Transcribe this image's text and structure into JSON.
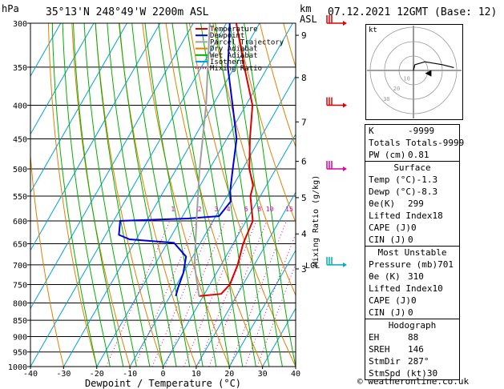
{
  "header": {
    "hpa_label": "hPa",
    "location": "35°13'N  248°49'W  2200m  ASL",
    "km_label": "km",
    "asl_label": "ASL",
    "datetime": "07.12.2021  12GMT  (Base: 12)"
  },
  "legend": [
    {
      "label": "Temperature",
      "color": "#e00000",
      "style": "solid"
    },
    {
      "label": "Dewpoint",
      "color": "#0000e0",
      "style": "solid"
    },
    {
      "label": "Parcel Trajectory",
      "color": "#a0a0a0",
      "style": "solid"
    },
    {
      "label": "Dry Adiabat",
      "color": "#e08000",
      "style": "solid"
    },
    {
      "label": "Wet Adiabat",
      "color": "#00b000",
      "style": "solid"
    },
    {
      "label": "Isotherm",
      "color": "#00a0e0",
      "style": "solid"
    },
    {
      "label": "Mixing Ratio",
      "color": "#e000a0",
      "style": "dotted"
    }
  ],
  "chart_data": {
    "type": "line",
    "title": "",
    "xlabel": "Dewpoint / Temperature (°C)",
    "ylabel": "hPa",
    "xlim": [
      -40,
      40
    ],
    "ylim": [
      1000,
      300
    ],
    "y_scale": "log",
    "x_ticks": [
      "-40",
      "-30",
      "-20",
      "-10",
      "0",
      "10",
      "20",
      "30",
      "40"
    ],
    "pressure_levels": [
      300,
      350,
      400,
      450,
      500,
      550,
      600,
      650,
      700,
      750,
      800,
      850,
      900,
      950,
      1000
    ],
    "km_ticks": [
      {
        "label": "9",
        "p": 313
      },
      {
        "label": "8",
        "p": 363
      },
      {
        "label": "7",
        "p": 424
      },
      {
        "label": "6",
        "p": 487
      },
      {
        "label": "5",
        "p": 553
      },
      {
        "label": "4",
        "p": 628
      },
      {
        "label": "3",
        "p": 710
      }
    ],
    "lcl": {
      "label": "LCL",
      "p": 700
    },
    "mixing_ratio_labels": [
      "1",
      "2",
      "3",
      "4",
      "6",
      "8",
      "10",
      "15",
      "20",
      "25"
    ],
    "mixing_ratio_values": [
      1,
      2,
      3,
      4,
      6,
      8,
      10,
      15,
      20,
      25
    ],
    "mixing_ratio_label_p": 585,
    "mixing_ratio_axis_label": "Mixing Ratio (g/kg)",
    "series": [
      {
        "name": "Temperature",
        "color": "#e00000",
        "points": [
          [
            781,
            -1.3
          ],
          [
            775,
            5
          ],
          [
            750,
            6
          ],
          [
            700,
            5
          ],
          [
            650,
            3
          ],
          [
            600,
            2
          ],
          [
            550,
            -3
          ],
          [
            530,
            -4
          ],
          [
            500,
            -8
          ],
          [
            450,
            -13
          ],
          [
            400,
            -18
          ],
          [
            350,
            -27
          ],
          [
            300,
            -37
          ]
        ]
      },
      {
        "name": "Dewpoint",
        "color": "#0000e0",
        "points": [
          [
            781,
            -8.3
          ],
          [
            760,
            -9
          ],
          [
            720,
            -10
          ],
          [
            680,
            -12
          ],
          [
            648,
            -18
          ],
          [
            640,
            -32
          ],
          [
            630,
            -36
          ],
          [
            600,
            -38
          ],
          [
            595,
            -18
          ],
          [
            590,
            -9
          ],
          [
            560,
            -8
          ],
          [
            540,
            -10
          ],
          [
            500,
            -13
          ],
          [
            450,
            -17
          ],
          [
            400,
            -24
          ],
          [
            350,
            -32
          ],
          [
            320,
            -36
          ],
          [
            300,
            -39
          ]
        ]
      },
      {
        "name": "Parcel Trajectory",
        "color": "#a0a0a0",
        "points": [
          [
            781,
            -1.3
          ],
          [
            700,
            -8
          ],
          [
            600,
            -15
          ],
          [
            500,
            -23
          ],
          [
            400,
            -32
          ],
          [
            300,
            -45
          ]
        ]
      }
    ],
    "wind_barbs": [
      {
        "p": 300,
        "color": "#e00000"
      },
      {
        "p": 400,
        "color": "#e00000"
      },
      {
        "p": 500,
        "color": "#e000a0"
      },
      {
        "p": 700,
        "color": "#00b0b0"
      }
    ]
  },
  "hodograph": {
    "unit_label": "kt",
    "ring_labels": [
      "10",
      "20",
      "30"
    ],
    "trace": [
      [
        0,
        0
      ],
      [
        1,
        4
      ],
      [
        8,
        6
      ],
      [
        20,
        4
      ],
      [
        28,
        2
      ]
    ],
    "storm_motion": {
      "u": 2,
      "v": 1
    }
  },
  "indices": {
    "top": [
      {
        "label": "K",
        "value": "-9999"
      },
      {
        "label": "Totals Totals",
        "value": "-9999"
      },
      {
        "label": "PW (cm)",
        "value": "0.81"
      }
    ],
    "surface_title": "Surface",
    "surface": [
      {
        "label": "Temp (°C)",
        "value": "-1.3"
      },
      {
        "label": "Dewp (°C)",
        "value": "-8.3"
      },
      {
        "label": "θe(K)",
        "value": "299"
      },
      {
        "label": "Lifted Index",
        "value": "18"
      },
      {
        "label": "CAPE (J)",
        "value": "0"
      },
      {
        "label": "CIN (J)",
        "value": "0"
      }
    ],
    "unstable_title": "Most Unstable",
    "unstable": [
      {
        "label": "Pressure (mb)",
        "value": "701"
      },
      {
        "label": "θe (K)",
        "value": "310"
      },
      {
        "label": "Lifted Index",
        "value": "10"
      },
      {
        "label": "CAPE (J)",
        "value": "0"
      },
      {
        "label": "CIN (J)",
        "value": "0"
      }
    ],
    "hodo_title": "Hodograph",
    "hodo": [
      {
        "label": "EH",
        "value": "88"
      },
      {
        "label": "SREH",
        "value": "146"
      },
      {
        "label": "StmDir",
        "value": "287°"
      },
      {
        "label": "StmSpd (kt)",
        "value": "30"
      }
    ]
  },
  "footer": "© weatheronline.co.uk"
}
